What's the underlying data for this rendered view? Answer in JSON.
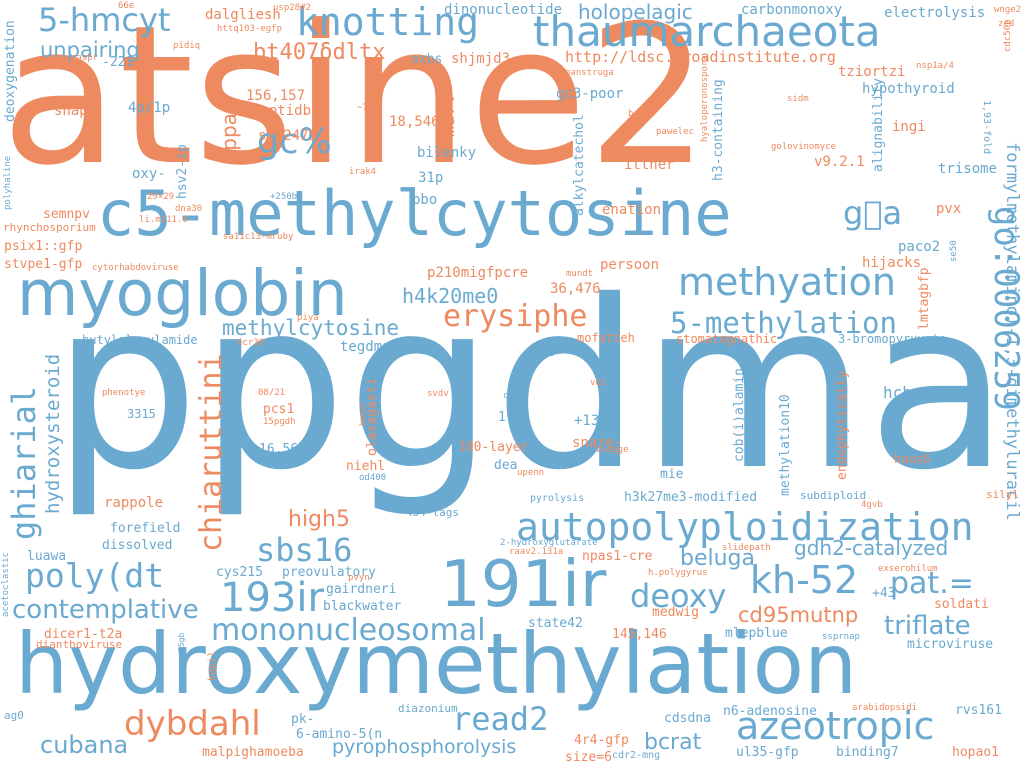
{
  "palette": {
    "orange": "#ee8a5f",
    "blue": "#6aa9d0"
  },
  "words": [
    {
      "text": "atsine2",
      "color": "orange"
    },
    {
      "text": "ppgdma",
      "color": "blue"
    },
    {
      "text": "hydroxymethylation",
      "color": "blue"
    },
    {
      "text": "c5-methylcytosine",
      "color": "blue"
    },
    {
      "text": "myoglobin",
      "color": "blue"
    },
    {
      "text": "thaumarchaeota",
      "color": "blue"
    },
    {
      "text": "knotting",
      "color": "blue"
    },
    {
      "text": "5-hmcyt",
      "color": "blue"
    },
    {
      "text": "191ir",
      "color": "blue"
    },
    {
      "text": "autopolyploidization",
      "color": "blue"
    },
    {
      "text": "methyation",
      "color": "blue"
    },
    {
      "text": "go:0006259",
      "color": "blue"
    },
    {
      "text": "g\u0000a",
      "color": "blue"
    },
    {
      "text": "chiaruttini",
      "color": "orange"
    },
    {
      "text": "ghiarial",
      "color": "blue"
    },
    {
      "text": "poly(dt",
      "color": "blue"
    },
    {
      "text": "193ir",
      "color": "blue"
    },
    {
      "text": "kh-52",
      "color": "blue"
    },
    {
      "text": "mononucleosomal",
      "color": "blue"
    },
    {
      "text": "erysiphe",
      "color": "orange"
    },
    {
      "text": "5-methylation",
      "color": "blue"
    },
    {
      "text": "read2",
      "color": "blue"
    },
    {
      "text": "azeotropic",
      "color": "blue"
    },
    {
      "text": "dybdahl",
      "color": "orange"
    },
    {
      "text": "cubana",
      "color": "blue"
    },
    {
      "text": "deoxy",
      "color": "blue"
    },
    {
      "text": "pat.=",
      "color": "blue"
    },
    {
      "text": "sbs16",
      "color": "blue"
    },
    {
      "text": "triflate",
      "color": "blue"
    },
    {
      "text": "gdh2-catalyzed",
      "color": "blue"
    },
    {
      "text": "contemplative",
      "color": "blue"
    },
    {
      "text": "gc%",
      "color": "blue"
    },
    {
      "text": "unpairing",
      "color": "blue"
    },
    {
      "text": "bt407δdltx",
      "color": "orange"
    },
    {
      "text": "h4k20me0",
      "color": "blue"
    },
    {
      "text": "methylcytosine",
      "color": "blue"
    },
    {
      "text": "high5",
      "color": "orange"
    },
    {
      "text": "hydroxysteroid",
      "color": "blue"
    },
    {
      "text": "appay",
      "color": "orange"
    },
    {
      "text": "holopelagic",
      "color": "blue"
    },
    {
      "text": "beluga",
      "color": "blue"
    },
    {
      "text": "cd95mutnp",
      "color": "orange"
    },
    {
      "text": "marv-",
      "color": "orange"
    },
    {
      "text": "bcrat",
      "color": "blue"
    },
    {
      "text": "pyrophosphorolysis",
      "color": "blue"
    },
    {
      "text": "formylmethylamino)-1,3-dimethyluracil",
      "color": "blue"
    },
    {
      "text": "http://ldsc.broadinstitute.org",
      "color": "orange"
    },
    {
      "text": "dinonucleotide",
      "color": "blue"
    },
    {
      "text": "carbonmonoxy",
      "color": "blue"
    },
    {
      "text": "electrolysis",
      "color": "blue"
    },
    {
      "text": "dalgliesh",
      "color": "orange"
    },
    {
      "text": "shjmjd3",
      "color": "orange"
    },
    {
      "text": "oxbs",
      "color": "blue"
    },
    {
      "text": "tziortzi",
      "color": "orange"
    },
    {
      "text": "hypothyroid",
      "color": "blue"
    },
    {
      "text": "gc3-poor",
      "color": "blue"
    },
    {
      "text": "156,157",
      "color": "orange"
    },
    {
      "text": "peptidb",
      "color": "orange"
    },
    {
      "text": "18,546",
      "color": "orange"
    },
    {
      "text": "stm2475",
      "color": "orange"
    },
    {
      "text": "bilenky",
      "color": "blue"
    },
    {
      "text": "saenz",
      "color": "orange"
    },
    {
      "text": "ittner",
      "color": "orange"
    },
    {
      "text": "v9.2.1",
      "color": "orange"
    },
    {
      "text": "trisome",
      "color": "blue"
    },
    {
      "text": "ingi",
      "color": "orange"
    },
    {
      "text": "4p/1p",
      "color": "blue"
    },
    {
      "text": "shapp",
      "color": "orange"
    },
    {
      "text": "deoxygenation",
      "color": "blue"
    },
    {
      "text": "-221",
      "color": "blue"
    },
    {
      "text": "oxy-",
      "color": "blue"
    },
    {
      "text": "hsv2-ip",
      "color": "blue"
    },
    {
      "text": "31p",
      "color": "blue"
    },
    {
      "text": "bbo",
      "color": "blue"
    },
    {
      "text": "alkylcatechol",
      "color": "blue"
    },
    {
      "text": "h3-containing",
      "color": "blue"
    },
    {
      "text": "alignability",
      "color": "blue"
    },
    {
      "text": "1,93-fold",
      "color": "blue"
    },
    {
      "text": "semnpv",
      "color": "orange"
    },
    {
      "text": "psix1::gfp",
      "color": "orange"
    },
    {
      "text": "stvpe1-gfp",
      "color": "orange"
    },
    {
      "text": "rhynchosporium",
      "color": "orange"
    },
    {
      "text": "enation",
      "color": "orange"
    },
    {
      "text": "pvx",
      "color": "orange"
    },
    {
      "text": "paco2",
      "color": "blue"
    },
    {
      "text": "hijacks",
      "color": "orange"
    },
    {
      "text": "persoon",
      "color": "orange"
    },
    {
      "text": "p210migfpcre",
      "color": "orange"
    },
    {
      "text": "36,476",
      "color": "orange"
    },
    {
      "text": "lmtagbfp",
      "color": "orange"
    },
    {
      "text": "tegdma",
      "color": "blue"
    },
    {
      "text": "mofatteh",
      "color": "orange"
    },
    {
      "text": "stomatognathic",
      "color": "orange"
    },
    {
      "text": "3-bromopyruvate",
      "color": "blue"
    },
    {
      "text": "butylglycylamide",
      "color": "blue"
    },
    {
      "text": "hcbp",
      "color": "blue"
    },
    {
      "text": "olasagasti",
      "color": "orange"
    },
    {
      "text": "pcs1",
      "color": "orange"
    },
    {
      "text": "3315",
      "color": "blue"
    },
    {
      "text": "16,569",
      "color": "blue"
    },
    {
      "text": "niehl",
      "color": "orange"
    },
    {
      "text": "100-layer",
      "color": "orange"
    },
    {
      "text": "1-ag",
      "color": "blue"
    },
    {
      "text": "+134",
      "color": "blue"
    },
    {
      "text": "snare-",
      "color": "orange"
    },
    {
      "text": "pnd9",
      "color": "blue"
    },
    {
      "text": "cob(i)alamin",
      "color": "blue"
    },
    {
      "text": "methylation10",
      "color": "blue"
    },
    {
      "text": "endophytically",
      "color": "orange"
    },
    {
      "text": "haus6",
      "color": "orange"
    },
    {
      "text": "dea",
      "color": "blue"
    },
    {
      "text": "mie",
      "color": "blue"
    },
    {
      "text": "h3k27me3-modified",
      "color": "blue"
    },
    {
      "text": "subdiploid",
      "color": "blue"
    },
    {
      "text": "silyl",
      "color": "orange"
    },
    {
      "text": "rappole",
      "color": "orange"
    },
    {
      "text": "454-tags",
      "color": "blue"
    },
    {
      "text": "pyrolysis",
      "color": "blue"
    },
    {
      "text": "forefield",
      "color": "blue"
    },
    {
      "text": "dissolved",
      "color": "blue"
    },
    {
      "text": "luawa",
      "color": "blue"
    },
    {
      "text": "cys215",
      "color": "blue"
    },
    {
      "text": "preovulatory",
      "color": "blue"
    },
    {
      "text": "gairdneri",
      "color": "blue"
    },
    {
      "text": "npas1-cre",
      "color": "orange"
    },
    {
      "text": "blackwater",
      "color": "blue"
    },
    {
      "text": "medwig",
      "color": "orange"
    },
    {
      "text": "+43",
      "color": "blue"
    },
    {
      "text": "soldati",
      "color": "orange"
    },
    {
      "text": "dicer1-t2a",
      "color": "orange"
    },
    {
      "text": "state42",
      "color": "blue"
    },
    {
      "text": "145,146",
      "color": "orange"
    },
    {
      "text": "mlepblue",
      "color": "blue"
    },
    {
      "text": "microviruse",
      "color": "blue"
    },
    {
      "text": "dianthoviruse",
      "color": "orange"
    },
    {
      "text": "hapil",
      "color": "orange"
    },
    {
      "text": "ag0",
      "color": "blue"
    },
    {
      "text": "pk-",
      "color": "blue"
    },
    {
      "text": "6-amino-5(n",
      "color": "blue"
    },
    {
      "text": "diazonium",
      "color": "blue"
    },
    {
      "text": "cdsdna",
      "color": "blue"
    },
    {
      "text": "n6-adenosine",
      "color": "blue"
    },
    {
      "text": "rvs161",
      "color": "blue"
    },
    {
      "text": "malpighamoeba",
      "color": "orange"
    },
    {
      "text": "4r4-gfp",
      "color": "orange"
    },
    {
      "text": "size=6",
      "color": "orange"
    },
    {
      "text": "ul35-gfp",
      "color": "blue"
    },
    {
      "text": "binding7",
      "color": "blue"
    },
    {
      "text": "hopao1",
      "color": "orange"
    },
    {
      "text": "cdr2-mng",
      "color": "blue"
    },
    {
      "text": "usp28#2",
      "color": "orange"
    },
    {
      "text": "66e",
      "color": "orange"
    },
    {
      "text": "httq103-egfp",
      "color": "orange"
    },
    {
      "text": "pidiq",
      "color": "orange"
    },
    {
      "text": "caspr",
      "color": "orange"
    },
    {
      "text": "panstruga",
      "color": "orange"
    },
    {
      "text": "nsp1a/4",
      "color": "orange"
    },
    {
      "text": "wnge2",
      "color": "orange"
    },
    {
      "text": "zed",
      "color": "orange"
    },
    {
      "text": "cdc50p",
      "color": "orange"
    },
    {
      "text": "hyaloperonospora",
      "color": "orange"
    },
    {
      "text": "sidm",
      "color": "orange"
    },
    {
      "text": "bs14",
      "color": "orange"
    },
    {
      "text": "pawelec",
      "color": "orange"
    },
    {
      "text": "golovinomyce",
      "color": "orange"
    },
    {
      "text": "~72h",
      "color": "orange"
    },
    {
      "text": "irak4",
      "color": "orange"
    },
    {
      "text": "29×29",
      "color": "orange"
    },
    {
      "text": "dna30",
      "color": "orange"
    },
    {
      "text": "+250bp",
      "color": "blue"
    },
    {
      "text": "li.m111.0",
      "color": "orange"
    },
    {
      "text": "sa11c13-mruby",
      "color": "orange"
    },
    {
      "text": "cytorhabdoviruse",
      "color": "orange"
    },
    {
      "text": "mundt",
      "color": "orange"
    },
    {
      "text": "piya",
      "color": "orange"
    },
    {
      "text": "écr30",
      "color": "orange"
    },
    {
      "text": "c§t",
      "color": "blue"
    },
    {
      "text": "se50",
      "color": "blue"
    },
    {
      "text": "phenotye",
      "color": "orange"
    },
    {
      "text": "08/21",
      "color": "orange"
    },
    {
      "text": "15pgdh",
      "color": "orange"
    },
    {
      "text": "bmnpv",
      "color": "orange"
    },
    {
      "text": "svdv",
      "color": "orange"
    },
    {
      "text": "c-28",
      "color": "blue"
    },
    {
      "text": "ve1",
      "color": "orange"
    },
    {
      "text": "zuegge",
      "color": "orange"
    },
    {
      "text": "od400",
      "color": "blue"
    },
    {
      "text": "upenn",
      "color": "orange"
    },
    {
      "text": "4gvb",
      "color": "orange"
    },
    {
      "text": "slidepath",
      "color": "orange"
    },
    {
      "text": "exserohilum",
      "color": "orange"
    },
    {
      "text": "raav2.131a",
      "color": "orange"
    },
    {
      "text": "2-hydroxyglutarate",
      "color": "blue"
    },
    {
      "text": "pvyn",
      "color": "orange"
    },
    {
      "text": "h.polygyrus",
      "color": "orange"
    },
    {
      "text": "ssprnap",
      "color": "blue"
    },
    {
      "text": "35gb",
      "color": "blue"
    },
    {
      "text": "acetoclastic",
      "color": "blue"
    },
    {
      "text": "polyhaline",
      "color": "blue"
    },
    {
      "text": "arabidopsidi",
      "color": "orange"
    }
  ]
}
